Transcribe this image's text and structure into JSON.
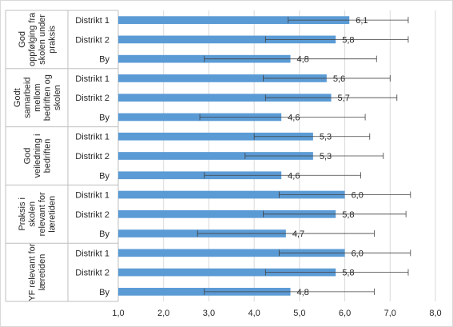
{
  "chart_data": {
    "type": "bar",
    "orientation": "horizontal",
    "xlim": [
      1.0,
      8.0
    ],
    "x_ticks": [
      "1,0",
      "2,0",
      "3,0",
      "4,0",
      "5,0",
      "6,0",
      "7,0",
      "8,0"
    ],
    "grid": "vertical major gridlines",
    "bar_color": "#5B9BD5",
    "groups": [
      {
        "label": "God oppfølging fra skolen under praksis",
        "label_lines": [
          "God",
          "oppfølging fra",
          "skolen under",
          "praksis"
        ],
        "items": [
          {
            "category": "Distrikt 1",
            "value": 6.1,
            "value_label": "6,1",
            "err_low": 4.75,
            "err_high": 7.4
          },
          {
            "category": "Distrikt 2",
            "value": 5.8,
            "value_label": "5,8",
            "err_low": 4.25,
            "err_high": 7.4
          },
          {
            "category": "By",
            "value": 4.8,
            "value_label": "4,8",
            "err_low": 2.9,
            "err_high": 6.7
          }
        ]
      },
      {
        "label": "Godt samarbeid mellom bedriften og skolen",
        "label_lines": [
          "Godt",
          "samarbeid",
          "mellom",
          "bedriften og",
          "skolen"
        ],
        "items": [
          {
            "category": "Distrikt 1",
            "value": 5.6,
            "value_label": "5,6",
            "err_low": 4.2,
            "err_high": 7.0
          },
          {
            "category": "Distrikt 2",
            "value": 5.7,
            "value_label": "5,7",
            "err_low": 4.25,
            "err_high": 7.15
          },
          {
            "category": "By",
            "value": 4.6,
            "value_label": "4,6",
            "err_low": 2.8,
            "err_high": 6.45
          }
        ]
      },
      {
        "label": "God veiledning i bedriften",
        "label_lines": [
          "God",
          "veiledning i",
          "bedriften"
        ],
        "items": [
          {
            "category": "Distrikt 1",
            "value": 5.3,
            "value_label": "5,3",
            "err_low": 4.0,
            "err_high": 6.55
          },
          {
            "category": "Distrikt 2",
            "value": 5.3,
            "value_label": "5,3",
            "err_low": 3.8,
            "err_high": 6.85
          },
          {
            "category": "By",
            "value": 4.6,
            "value_label": "4,6",
            "err_low": 2.9,
            "err_high": 6.35
          }
        ]
      },
      {
        "label": "Praksis i skolen relevant for læretiden",
        "label_lines": [
          "Praksis i",
          "skolen",
          "relevant for",
          "læretiden"
        ],
        "items": [
          {
            "category": "Distrikt 1",
            "value": 6.0,
            "value_label": "6,0",
            "err_low": 4.55,
            "err_high": 7.45
          },
          {
            "category": "Distrikt 2",
            "value": 5.8,
            "value_label": "5,8",
            "err_low": 4.2,
            "err_high": 7.35
          },
          {
            "category": "By",
            "value": 4.7,
            "value_label": "4,7",
            "err_low": 2.75,
            "err_high": 6.65
          }
        ]
      },
      {
        "label": "YF relevant for læretiden",
        "label_lines": [
          "YF relevant for",
          "læretiden"
        ],
        "items": [
          {
            "category": "Distrikt 1",
            "value": 6.0,
            "value_label": "6,0",
            "err_low": 4.55,
            "err_high": 7.45
          },
          {
            "category": "Distrikt 2",
            "value": 5.8,
            "value_label": "5,8",
            "err_low": 4.25,
            "err_high": 7.4
          },
          {
            "category": "By",
            "value": 4.8,
            "value_label": "4,8",
            "err_low": 2.9,
            "err_high": 6.65
          }
        ]
      }
    ]
  }
}
